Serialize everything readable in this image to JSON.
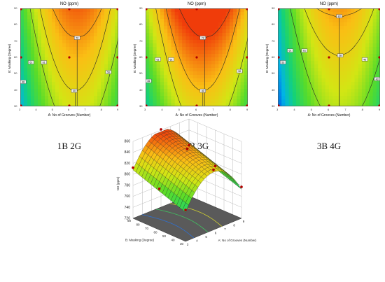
{
  "charts": [
    {
      "title": "NO (ppm)",
      "xlabel": "A: No of Grooves (Number)",
      "ylabel": "B: Masking (Degree)",
      "caption": "1B 2G",
      "xticks": [
        "3",
        "4",
        "5",
        "6",
        "7",
        "8",
        "9"
      ],
      "yticks": [
        "30",
        "40",
        "50",
        "60",
        "70",
        "80",
        "90"
      ],
      "contour_labels": [
        "72",
        "61",
        "61",
        "46",
        "40",
        "50"
      ]
    },
    {
      "title": "NO (ppm)",
      "xlabel": "A: No of Grooves (Number)",
      "ylabel": "B: Masking (Degree)",
      "caption": "2B 3G",
      "xticks": [
        "3",
        "4",
        "5",
        "6",
        "7",
        "8",
        "9"
      ],
      "yticks": [
        "30",
        "40",
        "50",
        "60",
        "70",
        "80",
        "90"
      ],
      "contour_labels": [
        "72",
        "61",
        "61",
        "46",
        "40",
        "50"
      ]
    },
    {
      "title": "NO (ppm)",
      "xlabel": "A: No of Grooves (Number)",
      "ylabel": "B: Masking (Degree)",
      "caption": "3B 4G",
      "xticks": [
        "3",
        "4",
        "5",
        "6",
        "7",
        "8",
        "9"
      ],
      "yticks": [
        "30",
        "40",
        "50",
        "60",
        "70",
        "80",
        "90"
      ],
      "contour_labels": [
        "83",
        "58",
        "61",
        "61",
        "53",
        "46",
        "43"
      ]
    }
  ],
  "chart_data": {
    "type": "surface",
    "zlabel": "NO (ppm)",
    "xlabel": "A: No of Grooves (Number)",
    "ylabel": "B: Masking (Degree)",
    "zticks": [
      "720",
      "740",
      "760",
      "780",
      "800",
      "820",
      "840",
      "860"
    ],
    "xticks": [
      "3",
      "4",
      "5",
      "6",
      "7",
      "8",
      "9"
    ],
    "yticks": [
      "30",
      "40",
      "50",
      "60",
      "70",
      "80",
      "90"
    ],
    "xlim": [
      3,
      9
    ],
    "ylim": [
      30,
      90
    ],
    "zlim": [
      720,
      860
    ]
  }
}
